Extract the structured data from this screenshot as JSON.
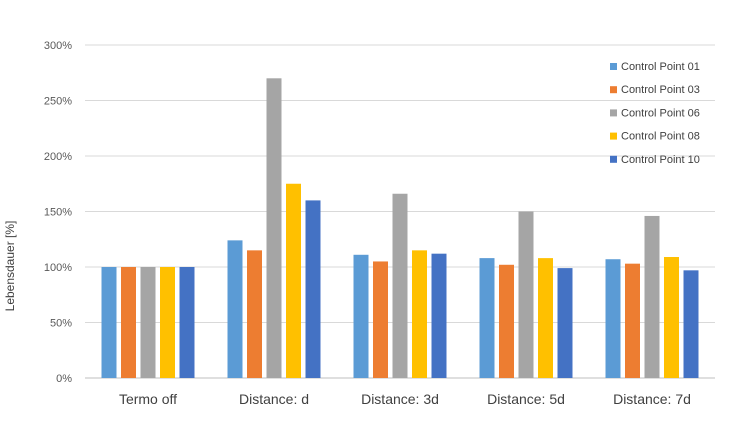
{
  "chart_data": {
    "type": "bar",
    "title": "",
    "xlabel": "",
    "ylabel": "Lebensdauer [%]",
    "ylim": [
      0,
      300
    ],
    "yticks": [
      "0%",
      "50%",
      "100%",
      "150%",
      "200%",
      "250%",
      "300%"
    ],
    "categories": [
      "Termo off",
      "Distance: d",
      "Distance: 3d",
      "Distance: 5d",
      "Distance: 7d"
    ],
    "series": [
      {
        "name": "Control Point 01",
        "color": "#5b9bd5",
        "values": [
          100,
          124,
          111,
          108,
          107
        ]
      },
      {
        "name": "Control Point 03",
        "color": "#ed7d31",
        "values": [
          100,
          115,
          105,
          102,
          103
        ]
      },
      {
        "name": "Control Point 06",
        "color": "#a5a5a5",
        "values": [
          100,
          270,
          166,
          150,
          146
        ]
      },
      {
        "name": "Control Point 08",
        "color": "#ffc000",
        "values": [
          100,
          175,
          115,
          108,
          109
        ]
      },
      {
        "name": "Control Point 10",
        "color": "#4472c4",
        "values": [
          100,
          160,
          112,
          99,
          97
        ]
      }
    ],
    "grid": true,
    "legend_position": "top-right"
  }
}
